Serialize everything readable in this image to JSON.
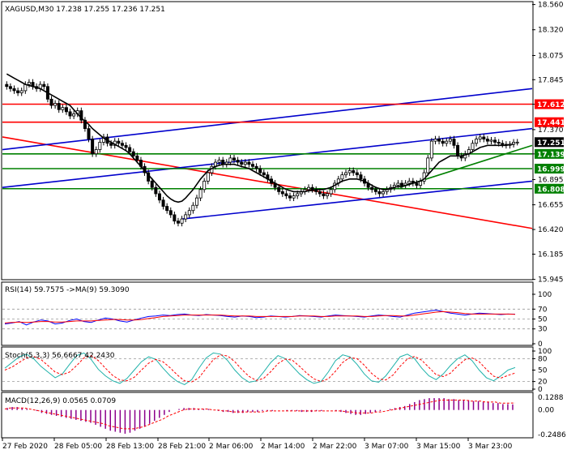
{
  "header": {
    "symbol_info": "XAGUSD,M30  17.238 17.255 17.236 17.251",
    "rsi_label": "RSI(14) 59.7575   ->MA(9) 59.3090",
    "stoch_label": "Stoch(5,3,3) 56.6667 42.2430",
    "macd_label": "MACD(12,26,9) 0.0565 0.0709"
  },
  "colors": {
    "candle": "#000000",
    "ma": "#000000",
    "red_line": "#ff0000",
    "blue_line": "#0000cc",
    "green_line": "#008000",
    "rsi": "#0000ff",
    "rsi_ma": "#ff0000",
    "stoch_main": "#20b2aa",
    "stoch_signal": "#ff0000",
    "macd_hist": "#8b008b",
    "macd_signal": "#ff0000"
  },
  "chart_data": {
    "type": "candlestick",
    "main_axis": {
      "ylim": [
        15.95,
        18.58
      ],
      "ticks": [
        "18.560",
        "18.320",
        "18.075",
        "17.845",
        "17.612",
        "17.370",
        "17.139",
        "16.895",
        "16.655",
        "16.420",
        "16.185",
        "15.945"
      ]
    },
    "price_boxes": [
      {
        "label": "17.612",
        "value": 17.612,
        "color": "#ff0000"
      },
      {
        "label": "17.441",
        "value": 17.441,
        "color": "#ff0000"
      },
      {
        "label": "17.251",
        "value": 17.251,
        "color": "#000000"
      },
      {
        "label": "17.139",
        "value": 17.139,
        "color": "#008000"
      },
      {
        "label": "16.999",
        "value": 16.999,
        "color": "#008000"
      },
      {
        "label": "16.808",
        "value": 16.808,
        "color": "#008000"
      }
    ],
    "x_ticks": [
      "27 Feb 2020",
      "28 Feb 05:00",
      "28 Feb 13:00",
      "28 Feb 21:00",
      "2 Mar 06:00",
      "2 Mar 14:00",
      "2 Mar 22:00",
      "3 Mar 07:00",
      "3 Mar 15:00",
      "3 Mar 23:00"
    ],
    "close": [
      17.78,
      17.76,
      17.74,
      17.72,
      17.74,
      17.8,
      17.82,
      17.78,
      17.76,
      17.8,
      17.78,
      17.66,
      17.6,
      17.62,
      17.56,
      17.58,
      17.54,
      17.5,
      17.52,
      17.55,
      17.46,
      17.38,
      17.28,
      17.14,
      17.18,
      17.25,
      17.3,
      17.24,
      17.22,
      17.26,
      17.24,
      17.22,
      17.2,
      17.16,
      17.12,
      17.08,
      17.02,
      16.96,
      16.88,
      16.82,
      16.76,
      16.7,
      16.64,
      16.6,
      16.56,
      16.5,
      16.48,
      16.52,
      16.56,
      16.6,
      16.65,
      16.72,
      16.8,
      16.88,
      16.96,
      17.02,
      17.06,
      17.08,
      17.04,
      17.06,
      17.1,
      17.08,
      17.06,
      17.04,
      17.06,
      17.04,
      17.02,
      17.0,
      16.96,
      16.94,
      16.9,
      16.86,
      16.82,
      16.78,
      16.76,
      16.74,
      16.72,
      16.74,
      16.76,
      16.78,
      16.8,
      16.82,
      16.8,
      16.78,
      16.76,
      16.74,
      16.76,
      16.8,
      16.86,
      16.9,
      16.94,
      16.96,
      16.98,
      16.96,
      16.94,
      16.9,
      16.86,
      16.82,
      16.8,
      16.78,
      16.76,
      16.78,
      16.8,
      16.82,
      16.84,
      16.86,
      16.84,
      16.86,
      16.88,
      16.86,
      16.84,
      16.88,
      16.96,
      17.1,
      17.26,
      17.28,
      17.26,
      17.24,
      17.26,
      17.28,
      17.22,
      17.12,
      17.1,
      17.14,
      17.18,
      17.24,
      17.28,
      17.3,
      17.28,
      17.26,
      17.27,
      17.25,
      17.24,
      17.23,
      17.22,
      17.23,
      17.25,
      17.251
    ],
    "ma": [
      17.9,
      17.88,
      17.86,
      17.84,
      17.82,
      17.8,
      17.79,
      17.78,
      17.77,
      17.76,
      17.74,
      17.72,
      17.7,
      17.68,
      17.66,
      17.64,
      17.62,
      17.6,
      17.56,
      17.52,
      17.48,
      17.45,
      17.42,
      17.38,
      17.35,
      17.32,
      17.29,
      17.27,
      17.25,
      17.23,
      17.21,
      17.19,
      17.17,
      17.14,
      17.1,
      17.06,
      17.02,
      16.98,
      16.94,
      16.9,
      16.86,
      16.82,
      16.78,
      16.74,
      16.71,
      16.69,
      16.68,
      16.69,
      16.72,
      16.76,
      16.8,
      16.85,
      16.9,
      16.94,
      16.98,
      17.0,
      17.02,
      17.03,
      17.04,
      17.04,
      17.04,
      17.04,
      17.03,
      17.02,
      17.01,
      17.0,
      16.98,
      16.96,
      16.94,
      16.92,
      16.9,
      16.88,
      16.86,
      16.84,
      16.82,
      16.8,
      16.79,
      16.78,
      16.78,
      16.78,
      16.78,
      16.79,
      16.79,
      16.8,
      16.8,
      16.8,
      16.81,
      16.82,
      16.84,
      16.86,
      16.88,
      16.89,
      16.9,
      16.9,
      16.9,
      16.89,
      16.88,
      16.86,
      16.84,
      16.82,
      16.81,
      16.8,
      16.8,
      16.81,
      16.82,
      16.83,
      16.83,
      16.84,
      16.85,
      16.86,
      16.87,
      16.88,
      16.9,
      16.94,
      16.98,
      17.02,
      17.06,
      17.08,
      17.1,
      17.12,
      17.12,
      17.12,
      17.12,
      17.13,
      17.14,
      17.16,
      17.18,
      17.2,
      17.21,
      17.22,
      17.22,
      17.22,
      17.22,
      17.22,
      17.22,
      17.23,
      17.23
    ],
    "trend_lines": [
      {
        "color": "#ff0000",
        "from": [
          0,
          17.3
        ],
        "to": [
          1,
          16.43
        ]
      },
      {
        "color": "#0000cc",
        "from": [
          0,
          17.18
        ],
        "to": [
          1,
          17.76
        ]
      },
      {
        "color": "#0000cc",
        "from": [
          0,
          16.82
        ],
        "to": [
          1,
          17.38
        ]
      },
      {
        "color": "#0000cc",
        "from": [
          0.34,
          16.52
        ],
        "to": [
          1,
          16.88
        ]
      },
      {
        "color": "#008000",
        "from": [
          0.75,
          16.82
        ],
        "to": [
          1,
          17.22
        ]
      }
    ],
    "rsi": {
      "axis_labels": [
        "100",
        "70",
        "50",
        "30",
        "0"
      ],
      "values": [
        40,
        42,
        45,
        38,
        44,
        48,
        46,
        40,
        42,
        47,
        50,
        45,
        43,
        48,
        52,
        50,
        46,
        44,
        48,
        52,
        55,
        56,
        58,
        57,
        59,
        60,
        58,
        57,
        59,
        58,
        57,
        55,
        54,
        56,
        55,
        53,
        54,
        56,
        55,
        54,
        55,
        57,
        56,
        55,
        54,
        56,
        58,
        57,
        56,
        55,
        54,
        56,
        58,
        57,
        55,
        54,
        58,
        62,
        64,
        66,
        68,
        65,
        62,
        60,
        58,
        60,
        62,
        61,
        60,
        59,
        60,
        59.76
      ],
      "ma": [
        42,
        43,
        44,
        43,
        44,
        45,
        45,
        44,
        44,
        45,
        46,
        46,
        46,
        47,
        48,
        49,
        49,
        48,
        48,
        49,
        51,
        53,
        55,
        56,
        57,
        58,
        58,
        58,
        58,
        58,
        58,
        57,
        56,
        56,
        56,
        55,
        55,
        55,
        55,
        55,
        55,
        56,
        56,
        56,
        55,
        55,
        56,
        56,
        56,
        56,
        55,
        55,
        56,
        57,
        57,
        56,
        56,
        58,
        60,
        62,
        64,
        65,
        64,
        63,
        61,
        60,
        60,
        60,
        60,
        60,
        60,
        59.31
      ]
    },
    "stoch": {
      "axis_labels": [
        "100",
        "80",
        "50",
        "20",
        "0"
      ],
      "main": [
        55,
        70,
        85,
        92,
        80,
        60,
        45,
        30,
        40,
        65,
        88,
        95,
        78,
        52,
        35,
        22,
        15,
        28,
        50,
        72,
        85,
        78,
        55,
        35,
        20,
        12,
        25,
        55,
        82,
        95,
        92,
        75,
        50,
        30,
        18,
        22,
        45,
        70,
        88,
        80,
        60,
        40,
        25,
        15,
        20,
        45,
        75,
        90,
        85,
        65,
        40,
        22,
        18,
        35,
        60,
        85,
        92,
        80,
        55,
        35,
        25,
        40,
        62,
        80,
        90,
        75,
        50,
        30,
        22,
        35,
        50,
        56.67
      ],
      "signal": [
        50,
        58,
        70,
        82,
        86,
        78,
        62,
        45,
        38,
        45,
        62,
        82,
        88,
        75,
        55,
        36,
        24,
        22,
        31,
        50,
        68,
        78,
        72,
        56,
        37,
        22,
        19,
        30,
        54,
        77,
        90,
        87,
        72,
        51,
        33,
        23,
        28,
        46,
        67,
        79,
        76,
        60,
        42,
        27,
        20,
        27,
        47,
        70,
        83,
        80,
        63,
        42,
        27,
        24,
        37,
        60,
        79,
        86,
        76,
        57,
        38,
        33,
        42,
        61,
        77,
        82,
        72,
        52,
        34,
        29,
        36,
        42.24
      ]
    },
    "macd": {
      "axis_labels": [
        "0.1288",
        "0.00",
        "-0.2486"
      ],
      "hist": [
        0.02,
        0.03,
        0.03,
        0.02,
        0.01,
        0.0,
        -0.01,
        -0.03,
        -0.04,
        -0.05,
        -0.06,
        -0.07,
        -0.08,
        -0.09,
        -0.1,
        -0.11,
        -0.12,
        -0.13,
        -0.15,
        -0.17,
        -0.19,
        -0.21,
        -0.22,
        -0.23,
        -0.24,
        -0.23,
        -0.21,
        -0.19,
        -0.17,
        -0.14,
        -0.11,
        -0.08,
        -0.05,
        -0.02,
        0.0,
        0.01,
        0.02,
        0.02,
        0.02,
        0.01,
        0.01,
        0.01,
        0.0,
        -0.01,
        -0.02,
        -0.02,
        -0.03,
        -0.03,
        -0.03,
        -0.02,
        -0.02,
        -0.02,
        -0.01,
        -0.01,
        -0.01,
        0.0,
        0.0,
        -0.01,
        -0.01,
        -0.01,
        -0.02,
        -0.02,
        -0.02,
        -0.01,
        -0.01,
        0.0,
        0.0,
        -0.01,
        -0.02,
        -0.03,
        -0.04,
        -0.05,
        -0.05,
        -0.04,
        -0.03,
        -0.02,
        -0.01,
        0.0,
        0.01,
        0.02,
        0.03,
        0.04,
        0.06,
        0.08,
        0.1,
        0.11,
        0.12,
        0.12,
        0.12,
        0.12,
        0.11,
        0.11,
        0.1,
        0.1,
        0.1,
        0.09,
        0.09,
        0.08,
        0.08,
        0.07,
        0.07,
        0.06,
        0.06,
        0.0565
      ],
      "signal": [
        0.01,
        0.02,
        0.02,
        0.02,
        0.02,
        0.01,
        0.0,
        -0.01,
        -0.02,
        -0.03,
        -0.04,
        -0.05,
        -0.06,
        -0.07,
        -0.08,
        -0.09,
        -0.1,
        -0.11,
        -0.12,
        -0.13,
        -0.14,
        -0.16,
        -0.17,
        -0.18,
        -0.19,
        -0.19,
        -0.19,
        -0.18,
        -0.17,
        -0.15,
        -0.13,
        -0.11,
        -0.09,
        -0.06,
        -0.04,
        -0.02,
        0.0,
        0.01,
        0.01,
        0.01,
        0.01,
        0.01,
        0.0,
        0.0,
        -0.01,
        -0.01,
        -0.02,
        -0.02,
        -0.02,
        -0.02,
        -0.02,
        -0.02,
        -0.02,
        -0.01,
        -0.01,
        -0.01,
        -0.01,
        -0.01,
        -0.01,
        -0.01,
        -0.01,
        -0.01,
        -0.01,
        -0.01,
        -0.01,
        -0.01,
        -0.01,
        -0.01,
        -0.01,
        -0.02,
        -0.02,
        -0.03,
        -0.03,
        -0.03,
        -0.03,
        -0.02,
        -0.02,
        -0.01,
        0.0,
        0.01,
        0.02,
        0.03,
        0.04,
        0.05,
        0.06,
        0.07,
        0.08,
        0.09,
        0.1,
        0.1,
        0.1,
        0.1,
        0.1,
        0.1,
        0.09,
        0.09,
        0.09,
        0.08,
        0.08,
        0.08,
        0.07,
        0.07,
        0.07,
        0.0709
      ]
    }
  }
}
